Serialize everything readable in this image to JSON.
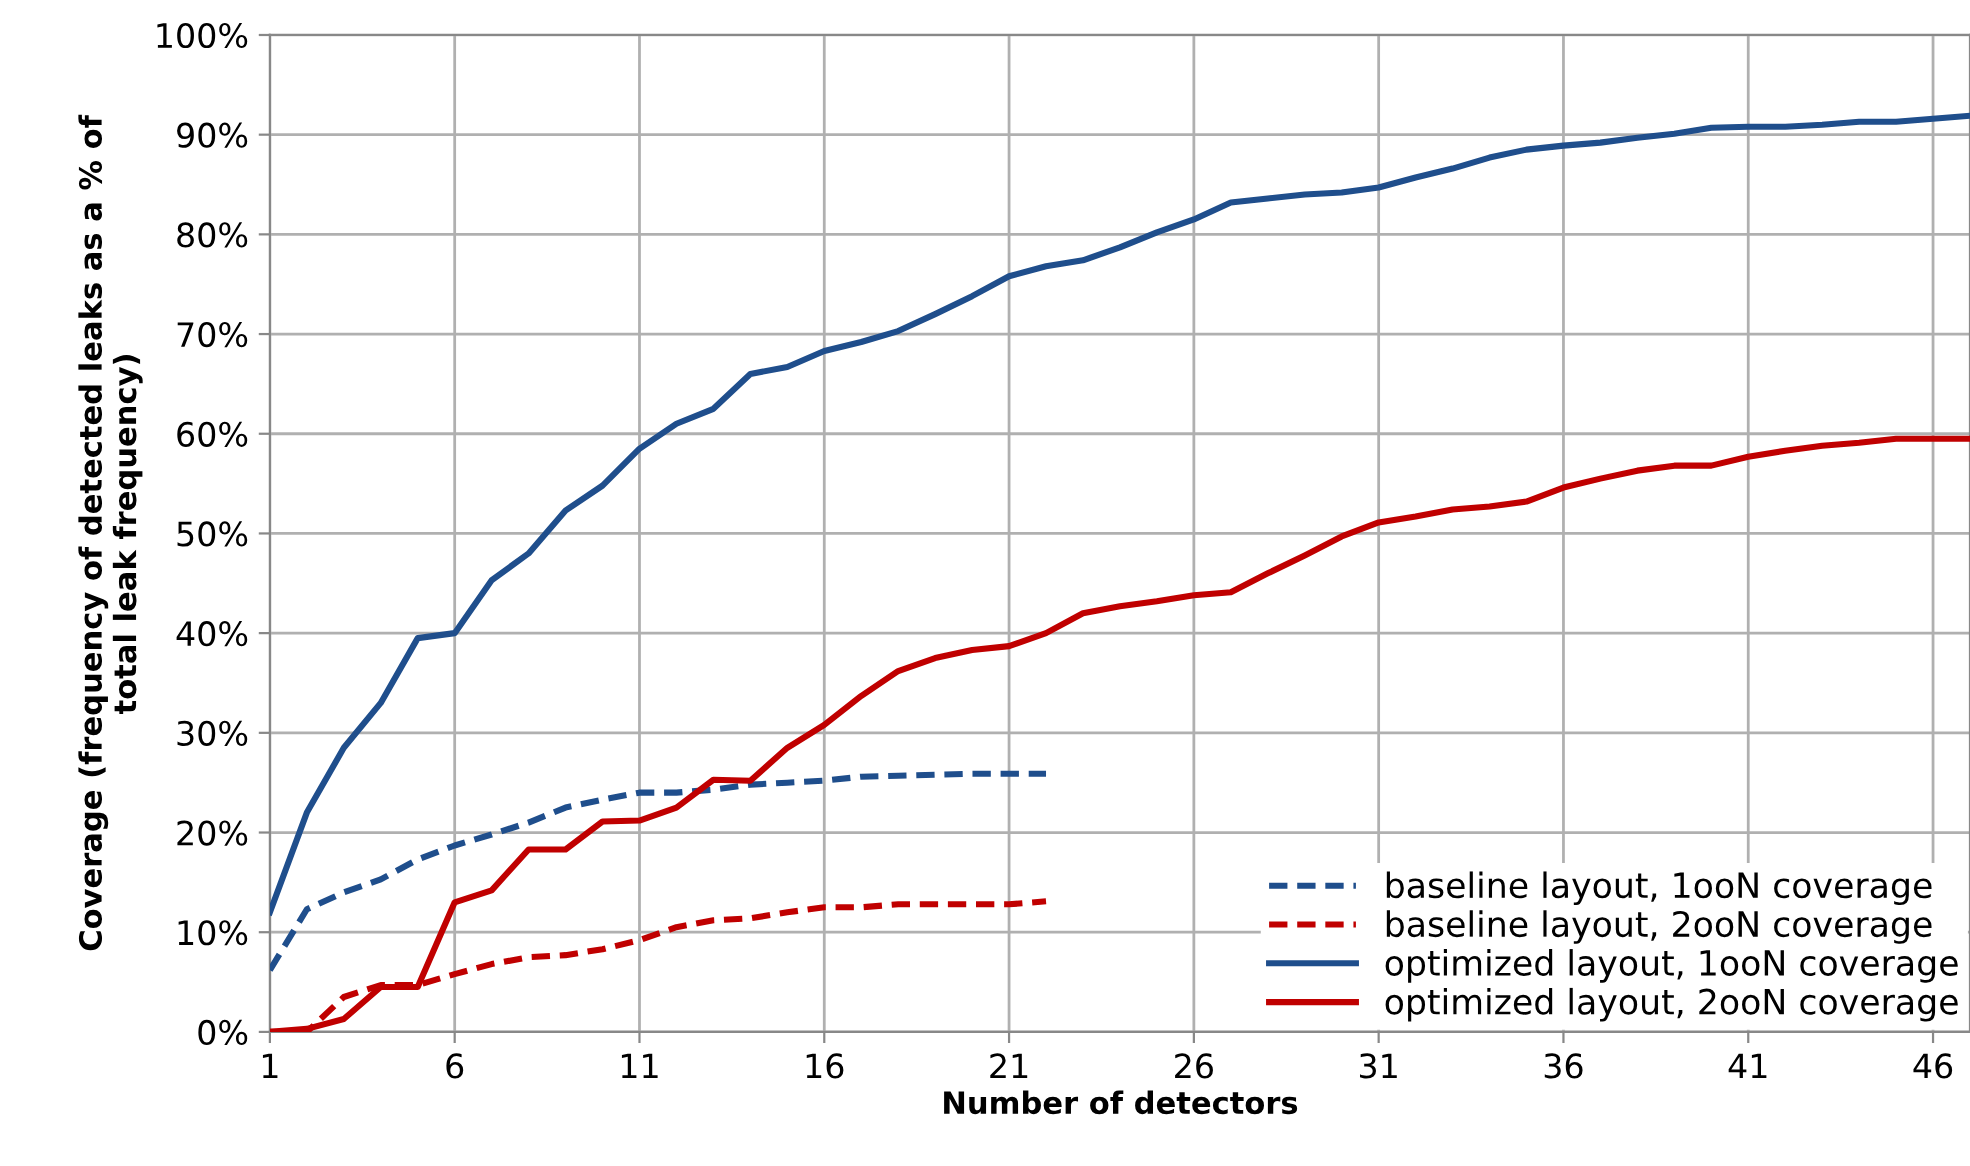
{
  "chart_data": {
    "type": "line",
    "xlabel": "Number of detectors",
    "ylabel": "Coverage (frequency of detected leaks as a % of\ntotal leak frequency)",
    "xlim": [
      1,
      47
    ],
    "xticks": [
      1,
      6,
      11,
      16,
      21,
      26,
      31,
      36,
      41,
      46
    ],
    "ylim": [
      0,
      100
    ],
    "yticks": [
      {
        "value": 0,
        "label": "0%"
      },
      {
        "value": 10,
        "label": "10%"
      },
      {
        "value": 20,
        "label": "20%"
      },
      {
        "value": 30,
        "label": "30%"
      },
      {
        "value": 40,
        "label": "40%"
      },
      {
        "value": 50,
        "label": "50%"
      },
      {
        "value": 60,
        "label": "60%"
      },
      {
        "value": 70,
        "label": "70%"
      },
      {
        "value": 80,
        "label": "80%"
      },
      {
        "value": 90,
        "label": "90%"
      },
      {
        "value": 100,
        "label": "100%"
      }
    ],
    "grid": true,
    "legend": "bottom right",
    "marker": "none",
    "series": [
      {
        "name": "baseline layout, 1ooN coverage",
        "color": "#1f4e8c",
        "line_style": "dashed",
        "x": [
          1,
          2,
          3,
          4,
          5,
          6,
          7,
          8,
          9,
          10,
          11,
          12,
          13,
          14,
          15,
          16,
          17,
          18,
          19,
          20,
          21,
          22
        ],
        "values": [
          6.2,
          12.3,
          14,
          15.3,
          17.3,
          18.7,
          19.8,
          21,
          22.5,
          23.3,
          24,
          24,
          24.3,
          24.8,
          25,
          25.2,
          25.6,
          25.7,
          25.8,
          25.9,
          25.9,
          25.9
        ]
      },
      {
        "name": "baseline layout, 2ooN coverage",
        "color": "#c00000",
        "line_style": "dashed",
        "x": [
          1,
          2,
          3,
          4,
          5,
          6,
          7,
          8,
          9,
          10,
          11,
          12,
          13,
          14,
          15,
          16,
          17,
          18,
          19,
          20,
          21,
          22
        ],
        "values": [
          0,
          0,
          3.5,
          4.7,
          4.7,
          5.8,
          6.8,
          7.5,
          7.7,
          8.3,
          9.2,
          10.5,
          11.2,
          11.4,
          12,
          12.5,
          12.5,
          12.8,
          12.8,
          12.8,
          12.8,
          13.1
        ]
      },
      {
        "name": "optimized layout, 1ooN coverage",
        "color": "#1f4e8c",
        "line_style": "solid",
        "x": [
          1,
          2,
          3,
          4,
          5,
          6,
          7,
          8,
          9,
          10,
          11,
          12,
          13,
          14,
          15,
          16,
          17,
          18,
          19,
          20,
          21,
          22,
          23,
          24,
          25,
          26,
          27,
          28,
          29,
          30,
          31,
          32,
          33,
          34,
          35,
          36,
          37,
          38,
          39,
          40,
          41,
          42,
          43,
          44,
          45,
          46,
          47
        ],
        "values": [
          12,
          22,
          28.5,
          33,
          39.5,
          40,
          45.3,
          48,
          52.3,
          54.8,
          58.5,
          61,
          62.5,
          66,
          66.7,
          68.3,
          69.2,
          70.3,
          72,
          73.8,
          75.8,
          76.8,
          77.4,
          78.7,
          80.2,
          81.5,
          83.2,
          83.6,
          84,
          84.2,
          84.7,
          85.7,
          86.6,
          87.7,
          88.5,
          88.9,
          89.2,
          89.7,
          90.1,
          90.7,
          90.8,
          90.8,
          91,
          91.3,
          91.3,
          91.6,
          91.9
        ]
      },
      {
        "name": "optimized layout, 2ooN coverage",
        "color": "#c00000",
        "line_style": "solid",
        "x": [
          1,
          2,
          3,
          4,
          5,
          6,
          7,
          8,
          9,
          10,
          11,
          12,
          13,
          14,
          15,
          16,
          17,
          18,
          19,
          20,
          21,
          22,
          23,
          24,
          25,
          26,
          27,
          28,
          29,
          30,
          31,
          32,
          33,
          34,
          35,
          36,
          37,
          38,
          39,
          40,
          41,
          42,
          43,
          44,
          45,
          46,
          47
        ],
        "values": [
          0,
          0.3,
          1.3,
          4.5,
          4.5,
          13,
          14.2,
          18.3,
          18.3,
          21.1,
          21.2,
          22.5,
          25.3,
          25.2,
          28.5,
          30.8,
          33.7,
          36.2,
          37.5,
          38.3,
          38.7,
          40,
          42,
          42.7,
          43.2,
          43.8,
          44.1,
          46,
          47.8,
          49.7,
          51.1,
          51.7,
          52.4,
          52.7,
          53.2,
          54.6,
          55.5,
          56.3,
          56.8,
          56.8,
          57.7,
          58.3,
          58.8,
          59.1,
          59.5,
          59.5,
          59.5
        ]
      }
    ]
  }
}
